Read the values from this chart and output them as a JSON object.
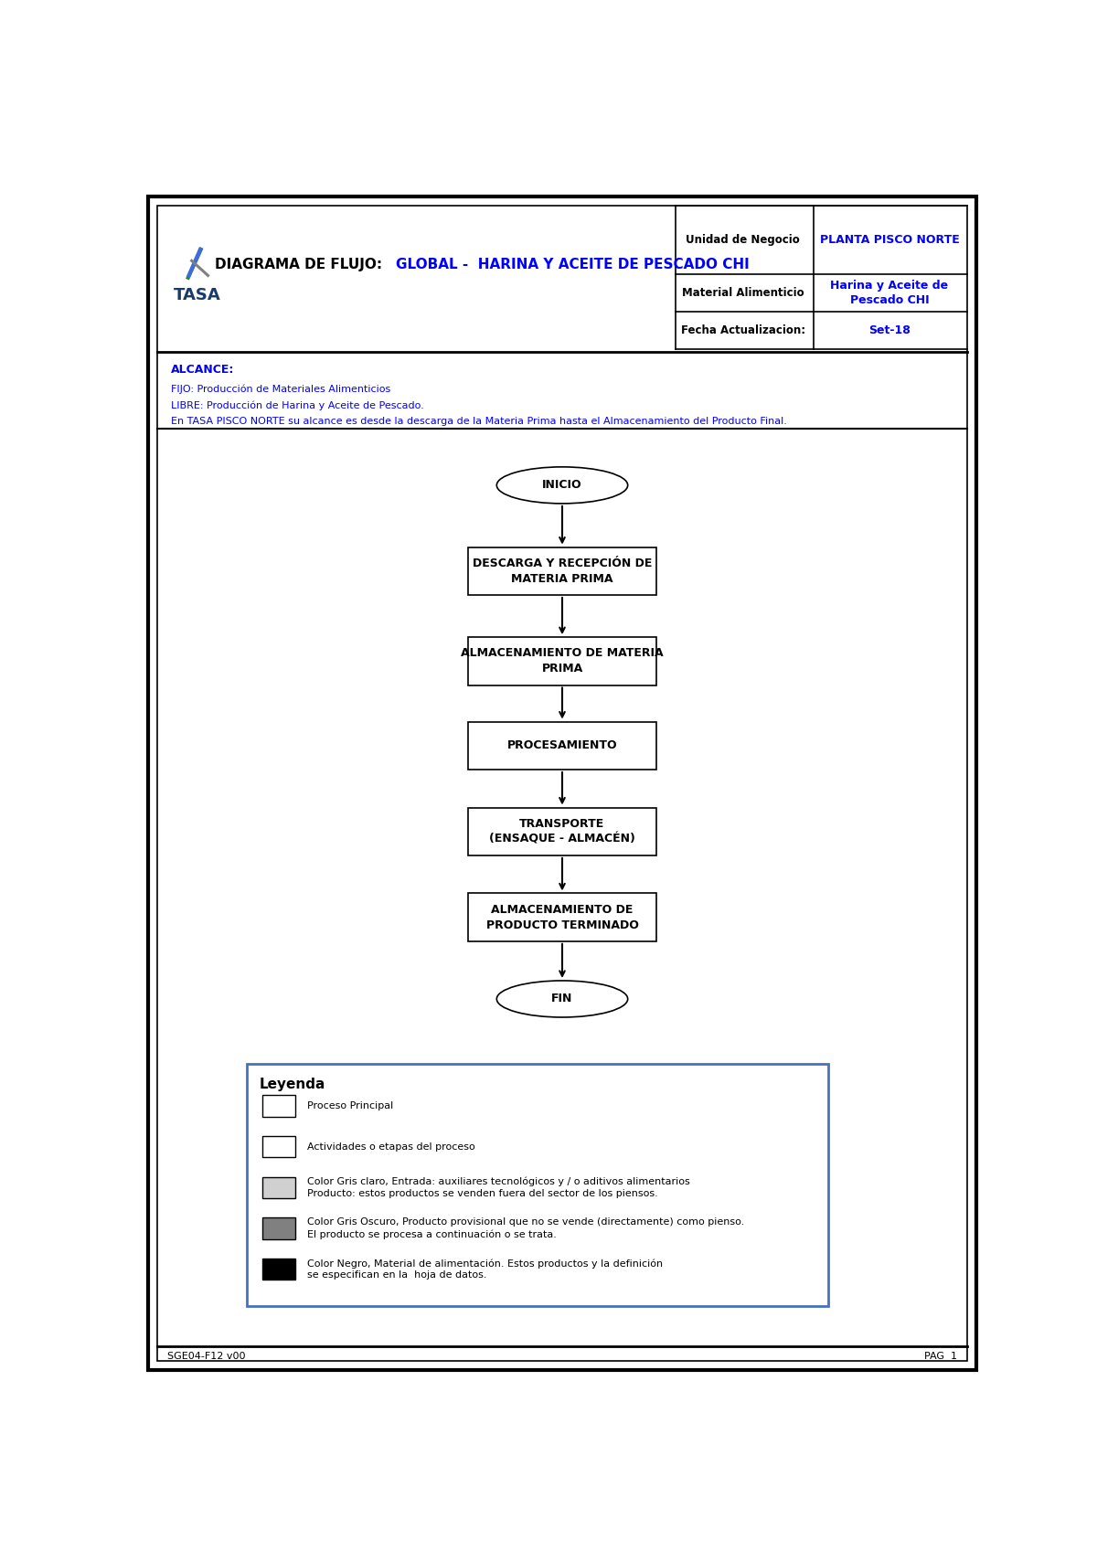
{
  "title_prefix": "DIAGRAMA DE FLUJO:  ",
  "title_blue": "GLOBAL -  HARINA Y ACEITE DE PESCADO CHI",
  "header_label1": "Unidad de Negocio",
  "header_value1": "PLANTA PISCO NORTE",
  "header_label2": "Material Alimenticio",
  "header_value2": "Harina y Aceite de\nPescado CHI",
  "header_label3": "Fecha Actualizacion:",
  "header_value3": "Set-18",
  "alcance_title": "ALCANCE:",
  "alcance_lines": [
    "FIJO: Producción de Materiales Alimenticios",
    "LIBRE: Producción de Harina y Aceite de Pescado.",
    "En TASA PISCO NORTE su alcance es desde la descarga de la Materia Prima hasta el Almacenamiento del Producto Final."
  ],
  "flow_nodes": [
    {
      "label": "INICIO",
      "type": "oval"
    },
    {
      "label": "DESCARGA Y RECEPCIÓN DE\nMATERIA PRIMA",
      "type": "rect"
    },
    {
      "label": "ALMACENAMIENTO DE MATERIA\nPRIMA",
      "type": "rect"
    },
    {
      "label": "PROCESAMIENTO",
      "type": "rect"
    },
    {
      "label": "TRANSPORTE\n(ENSAQUE - ALMACÉN)",
      "type": "rect"
    },
    {
      "label": "ALMACENAMIENTO DE\nPRODUCTO TERMINADO",
      "type": "rect"
    },
    {
      "label": "FIN",
      "type": "oval"
    }
  ],
  "legend_title": "Leyenda",
  "legend_items": [
    {
      "color": "white",
      "edge_color": "black",
      "label": "Proceso Principal"
    },
    {
      "color": "white",
      "edge_color": "black",
      "label": "Actividades o etapas del proceso"
    },
    {
      "color": "#d0d0d0",
      "edge_color": "black",
      "label": "Color Gris claro, Entrada: auxiliares tecnológicos y / o aditivos alimentarios\nProducto: estos productos se venden fuera del sector de los piensos."
    },
    {
      "color": "#808080",
      "edge_color": "black",
      "label": "Color Gris Oscuro, Producto provisional que no se vende (directamente) como pienso.\nEl producto se procesa a continuación o se trata."
    },
    {
      "color": "black",
      "edge_color": "black",
      "label": "Color Negro, Material de alimentación. Estos productos y la definición\nse especifican en la  hoja de datos."
    }
  ],
  "footer_left": "SGE04-F12 v00",
  "footer_right": "PAG  1",
  "blue_color": "#0000FF",
  "node_box_color": "white",
  "node_box_edge": "black",
  "arrow_color": "black",
  "legend_border_color": "#4472C4",
  "outer_border_color": "black",
  "inner_border_color": "black"
}
